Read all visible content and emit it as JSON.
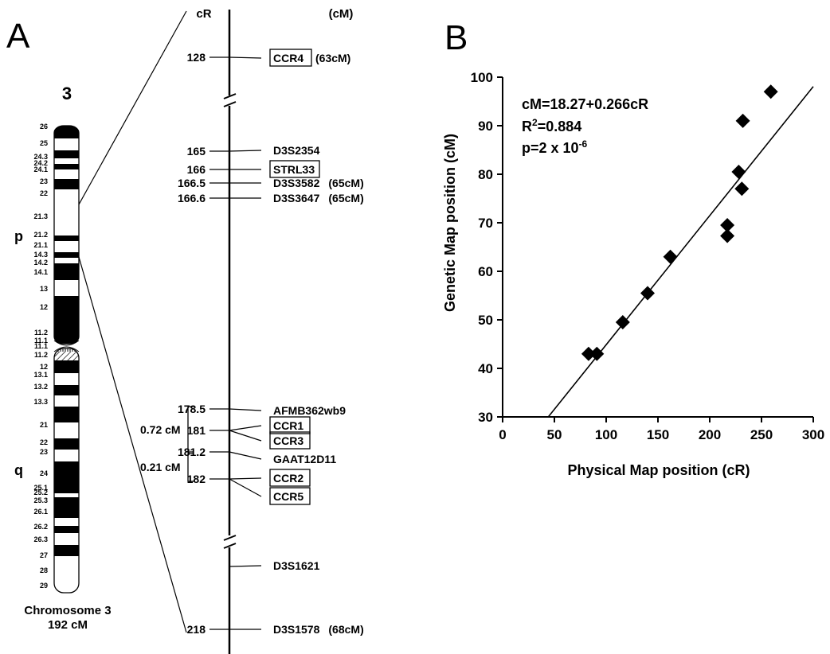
{
  "panel_a": {
    "letter": "A",
    "chromosome_number": "3",
    "arm_p": "p",
    "arm_q": "q",
    "caption_line1": "Chromosome 3",
    "caption_line2": "192 cM",
    "bands": [
      "26",
      "25",
      "24.3",
      "24.2",
      "24.1",
      "23",
      "22",
      "21.3",
      "21.2",
      "21.1",
      "14.3",
      "14.2",
      "14.1",
      "13",
      "12",
      "11.2",
      "11.1",
      "11.1",
      "11.2",
      "12",
      "13.1",
      "13.2",
      "13.3",
      "21",
      "22",
      "23",
      "24",
      "25.1",
      "25.2",
      "25.3",
      "26.1",
      "26.2",
      "26.3",
      "27",
      "28",
      "29"
    ],
    "map_header_cr": "cR",
    "map_header_cm": "(cM)",
    "markers": [
      {
        "cr": "128",
        "name": "CCR4",
        "cm": "(63cM)",
        "boxed": true
      },
      {
        "cr": "165",
        "name": "D3S2354",
        "cm": "",
        "boxed": false
      },
      {
        "cr": "166",
        "name": "STRL33",
        "cm": "",
        "boxed": true
      },
      {
        "cr": "166.5",
        "name": "D3S3582",
        "cm": "(65cM)",
        "boxed": false
      },
      {
        "cr": "166.6",
        "name": "D3S3647",
        "cm": "(65cM)",
        "boxed": false
      },
      {
        "cr": "178.5",
        "name": "AFMB362wb9",
        "cm": "",
        "boxed": false
      },
      {
        "cr": "181",
        "name": "CCR1",
        "cm": "",
        "boxed": true
      },
      {
        "cr": "",
        "name": "CCR3",
        "cm": "",
        "boxed": true
      },
      {
        "cr": "181.2",
        "name": "GAAT12D11",
        "cm": "",
        "boxed": false
      },
      {
        "cr": "182",
        "name": "CCR2",
        "cm": "",
        "boxed": true
      },
      {
        "cr": "",
        "name": "CCR5",
        "cm": "",
        "boxed": true
      },
      {
        "cr": "",
        "name": "D3S1621",
        "cm": "",
        "boxed": false
      },
      {
        "cr": "218",
        "name": "D3S1578",
        "cm": "(68cM)",
        "boxed": false
      }
    ],
    "bracket_upper_label": "0.72 cM",
    "bracket_lower_label": "0.21 cM"
  },
  "panel_b": {
    "letter": "B",
    "equation": "cM=18.27+0.266cR",
    "r2_prefix": "R",
    "r2_sup": "2",
    "r2_value": "=0.884",
    "p_prefix": "p=2 x 10",
    "p_sup": "-6"
  },
  "chart_data": {
    "type": "scatter",
    "title": "",
    "xlabel": "Physical Map position (cR)",
    "ylabel": "Genetic Map position (cM)",
    "xlim": [
      0,
      300
    ],
    "ylim": [
      30,
      100
    ],
    "xticks": [
      0,
      50,
      100,
      150,
      200,
      250,
      300
    ],
    "yticks": [
      30,
      40,
      50,
      60,
      70,
      80,
      90,
      100
    ],
    "grid": false,
    "marker": "diamond",
    "points": [
      {
        "x": 83,
        "y": 43
      },
      {
        "x": 91,
        "y": 43
      },
      {
        "x": 116,
        "y": 49.5
      },
      {
        "x": 140,
        "y": 55.5
      },
      {
        "x": 162,
        "y": 63
      },
      {
        "x": 217,
        "y": 69.5
      },
      {
        "x": 217,
        "y": 67.3
      },
      {
        "x": 228,
        "y": 80.5
      },
      {
        "x": 231,
        "y": 77
      },
      {
        "x": 232,
        "y": 91
      },
      {
        "x": 259,
        "y": 97
      }
    ],
    "fit_line": {
      "intercept": 18.27,
      "slope": 0.266,
      "x_start": 44,
      "x_end": 300
    }
  }
}
